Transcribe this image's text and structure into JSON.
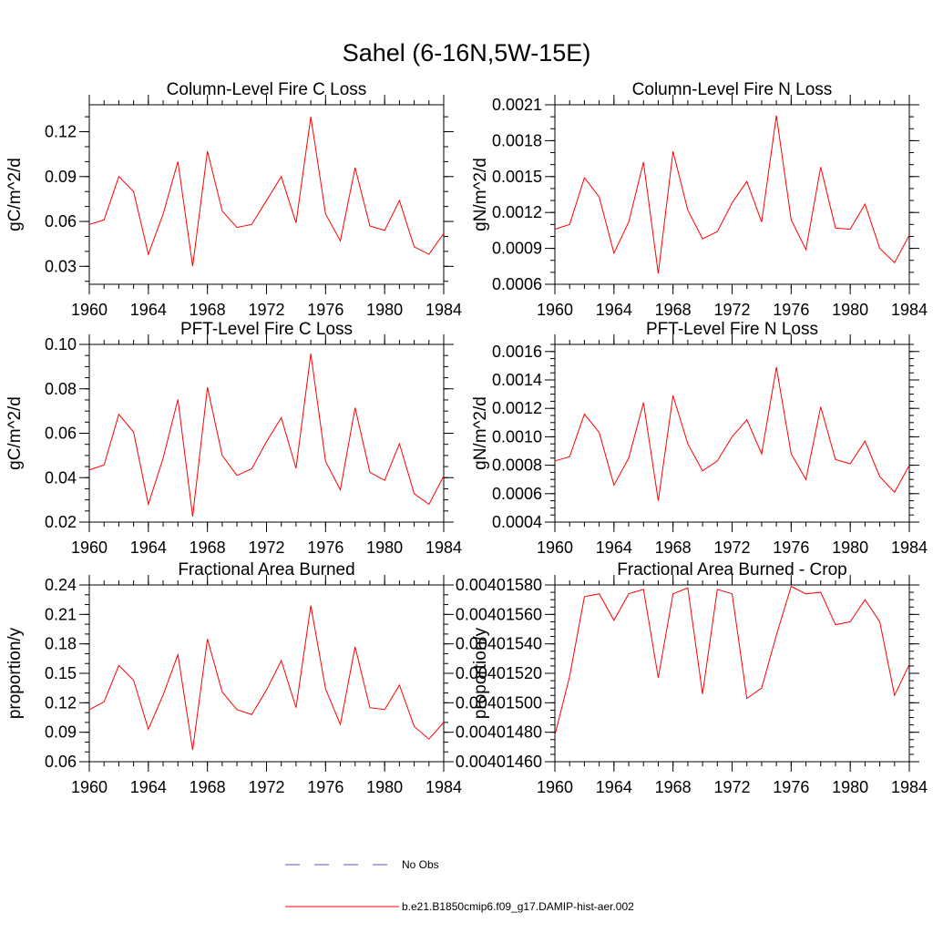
{
  "title": "Sahel (6-16N,5W-15E)",
  "colors": {
    "model_line": "#ff0000",
    "obs_line": "#5555bb",
    "axis": "#000000"
  },
  "legend": {
    "placement": "bottom-center",
    "items": [
      {
        "label": "No Obs",
        "style": "dashed",
        "color": "#5555bb"
      },
      {
        "label": "b.e21.B1850cmip6.f09_g17.DAMIP-hist-aer.002",
        "style": "solid",
        "color": "#ff0000"
      }
    ]
  },
  "chart_data": [
    {
      "type": "line",
      "title": "Column-Level Fire C Loss",
      "ylabel": "gC/m^2/d",
      "xlim": [
        1960,
        1984
      ],
      "ylim": [
        0.018,
        0.138
      ],
      "xticks": [
        "1960",
        "1964",
        "1968",
        "1972",
        "1976",
        "1980",
        "1984"
      ],
      "yticks": [
        "0.03",
        "0.06",
        "0.09",
        "0.12"
      ],
      "yminor": 0.01,
      "x": [
        1960,
        1961,
        1962,
        1963,
        1964,
        1965,
        1966,
        1967,
        1968,
        1969,
        1970,
        1971,
        1972,
        1973,
        1974,
        1975,
        1976,
        1977,
        1978,
        1979,
        1980,
        1981,
        1982,
        1983,
        1984
      ],
      "series": [
        {
          "values": [
            0.058,
            0.061,
            0.09,
            0.08,
            0.038,
            0.065,
            0.1,
            0.03,
            0.107,
            0.067,
            0.056,
            0.058,
            0.074,
            0.09,
            0.059,
            0.13,
            0.065,
            0.047,
            0.096,
            0.057,
            0.054,
            0.074,
            0.043,
            0.038,
            0.052
          ]
        }
      ]
    },
    {
      "type": "line",
      "title": "Column-Level Fire N Loss",
      "ylabel": "gN/m^2/d",
      "xlim": [
        1960,
        1984
      ],
      "ylim": [
        0.0006,
        0.0021
      ],
      "xticks": [
        "1960",
        "1964",
        "1968",
        "1972",
        "1976",
        "1980",
        "1984"
      ],
      "yticks": [
        "0.0006",
        "0.0009",
        "0.0012",
        "0.0015",
        "0.0018",
        "0.0021"
      ],
      "yminor": 0.0001,
      "x": [
        1960,
        1961,
        1962,
        1963,
        1964,
        1965,
        1966,
        1967,
        1968,
        1969,
        1970,
        1971,
        1972,
        1973,
        1974,
        1975,
        1976,
        1977,
        1978,
        1979,
        1980,
        1981,
        1982,
        1983,
        1984
      ],
      "series": [
        {
          "values": [
            0.00106,
            0.0011,
            0.00149,
            0.00133,
            0.00086,
            0.00112,
            0.00162,
            0.00069,
            0.00171,
            0.00122,
            0.00098,
            0.00104,
            0.00128,
            0.00146,
            0.00112,
            0.00201,
            0.00114,
            0.00089,
            0.00158,
            0.00107,
            0.00106,
            0.00127,
            0.0009,
            0.00078,
            0.00101
          ]
        }
      ]
    },
    {
      "type": "line",
      "title": "PFT-Level Fire C Loss",
      "ylabel": "gC/m^2/d",
      "xlim": [
        1960,
        1984
      ],
      "ylim": [
        0.02,
        0.1
      ],
      "xticks": [
        "1960",
        "1964",
        "1968",
        "1972",
        "1976",
        "1980",
        "1984"
      ],
      "yticks": [
        "0.02",
        "0.04",
        "0.06",
        "0.08",
        "0.10"
      ],
      "yminor": 0.005,
      "x": [
        1960,
        1961,
        1962,
        1963,
        1964,
        1965,
        1966,
        1967,
        1968,
        1969,
        1970,
        1971,
        1972,
        1973,
        1974,
        1975,
        1976,
        1977,
        1978,
        1979,
        1980,
        1981,
        1982,
        1983,
        1984
      ],
      "series": [
        {
          "values": [
            0.0435,
            0.0457,
            0.0685,
            0.0605,
            0.028,
            0.0488,
            0.0752,
            0.0225,
            0.0807,
            0.05,
            0.041,
            0.044,
            0.0562,
            0.067,
            0.0442,
            0.0958,
            0.0473,
            0.0345,
            0.0715,
            0.0424,
            0.0388,
            0.0553,
            0.0328,
            0.028,
            0.0407
          ]
        }
      ]
    },
    {
      "type": "line",
      "title": "PFT-Level Fire N Loss",
      "ylabel": "gN/m^2/d",
      "xlim": [
        1960,
        1984
      ],
      "ylim": [
        0.0004,
        0.00165
      ],
      "xticks": [
        "1960",
        "1964",
        "1968",
        "1972",
        "1976",
        "1980",
        "1984"
      ],
      "yticks": [
        "0.0004",
        "0.0006",
        "0.0008",
        "0.0010",
        "0.0012",
        "0.0014",
        "0.0016"
      ],
      "yminor": 5e-05,
      "x": [
        1960,
        1961,
        1962,
        1963,
        1964,
        1965,
        1966,
        1967,
        1968,
        1969,
        1970,
        1971,
        1972,
        1973,
        1974,
        1975,
        1976,
        1977,
        1978,
        1979,
        1980,
        1981,
        1982,
        1983,
        1984
      ],
      "series": [
        {
          "values": [
            0.00083,
            0.00086,
            0.00116,
            0.00103,
            0.00066,
            0.00085,
            0.00124,
            0.00055,
            0.00129,
            0.00095,
            0.00076,
            0.00083,
            0.001,
            0.00112,
            0.00088,
            0.00149,
            0.00088,
            0.0007,
            0.00121,
            0.00084,
            0.00081,
            0.00097,
            0.00072,
            0.00061,
            0.0008
          ]
        }
      ]
    },
    {
      "type": "line",
      "title": "Fractional Area Burned",
      "ylabel": "proportion/y",
      "xlim": [
        1960,
        1984
      ],
      "ylim": [
        0.06,
        0.24
      ],
      "xticks": [
        "1960",
        "1964",
        "1968",
        "1972",
        "1976",
        "1980",
        "1984"
      ],
      "yticks": [
        "0.06",
        "0.09",
        "0.12",
        "0.15",
        "0.18",
        "0.21",
        "0.24"
      ],
      "yminor": 0.01,
      "x": [
        1960,
        1961,
        1962,
        1963,
        1964,
        1965,
        1966,
        1967,
        1968,
        1969,
        1970,
        1971,
        1972,
        1973,
        1974,
        1975,
        1976,
        1977,
        1978,
        1979,
        1980,
        1981,
        1982,
        1983,
        1984
      ],
      "series": [
        {
          "values": [
            0.113,
            0.121,
            0.158,
            0.143,
            0.093,
            0.128,
            0.169,
            0.072,
            0.185,
            0.131,
            0.113,
            0.108,
            0.133,
            0.163,
            0.115,
            0.219,
            0.134,
            0.098,
            0.177,
            0.115,
            0.113,
            0.138,
            0.096,
            0.083,
            0.1
          ]
        }
      ]
    },
    {
      "type": "line",
      "title": "Fractional Area Burned - Crop",
      "ylabel": "proportion/y",
      "xlim": [
        1960,
        1984
      ],
      "ylim": [
        0.0040146,
        0.0040158
      ],
      "xticks": [
        "1960",
        "1964",
        "1968",
        "1972",
        "1976",
        "1980",
        "1984"
      ],
      "yticks": [
        "0.00401460",
        "0.00401480",
        "0.00401500",
        "0.00401520",
        "0.00401540",
        "0.00401560",
        "0.00401580"
      ],
      "yminor": 5e-08,
      "x": [
        1960,
        1961,
        1962,
        1963,
        1964,
        1965,
        1966,
        1967,
        1968,
        1969,
        1970,
        1971,
        1972,
        1973,
        1974,
        1975,
        1976,
        1977,
        1978,
        1979,
        1980,
        1981,
        1982,
        1983,
        1984
      ],
      "series": [
        {
          "values": [
            0.00401478,
            0.00401518,
            0.00401572,
            0.00401574,
            0.00401556,
            0.00401574,
            0.00401577,
            0.00401517,
            0.00401574,
            0.00401578,
            0.00401506,
            0.00401577,
            0.00401574,
            0.00401503,
            0.0040151,
            0.00401546,
            0.00401579,
            0.00401574,
            0.00401575,
            0.00401553,
            0.00401555,
            0.0040157,
            0.00401555,
            0.00401505,
            0.00401526
          ]
        }
      ]
    }
  ]
}
